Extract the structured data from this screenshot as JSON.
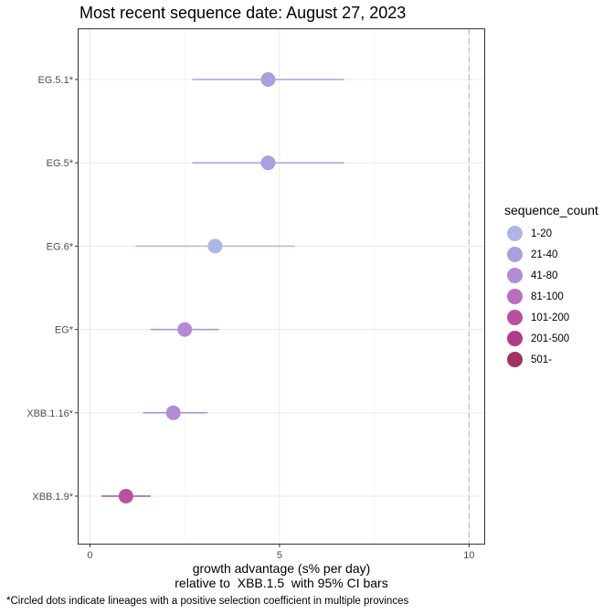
{
  "title": "Most recent sequence date: August 27, 2023",
  "footnote": "*Circled dots indicate lineages with a positive selection coefficient in multiple provinces",
  "chart_data": {
    "type": "scatter",
    "title": "Most recent sequence date: August 27, 2023",
    "xlabel": "growth advantage (s% per day)",
    "xlabel_line2": "relative to  XBB.1.5  with 95% CI bars",
    "ylabel": "",
    "xlim": [
      -0.3,
      10.4
    ],
    "xticks": [
      0,
      5,
      10
    ],
    "reference_line_x": 10,
    "grid": true,
    "categories": [
      "EG.5.1*",
      "EG.5*",
      "EG.6*",
      "EG*",
      "XBB.1.16*",
      "XBB.1.9*"
    ],
    "points": [
      {
        "lineage": "EG.5.1*",
        "x": 4.7,
        "lower": 2.7,
        "upper": 6.7,
        "sequence_count": "21-40"
      },
      {
        "lineage": "EG.5*",
        "x": 4.7,
        "lower": 2.7,
        "upper": 6.7,
        "sequence_count": "21-40"
      },
      {
        "lineage": "EG.6*",
        "x": 3.3,
        "lower": 1.2,
        "upper": 5.4,
        "sequence_count": "1-20"
      },
      {
        "lineage": "EG*",
        "x": 2.5,
        "lower": 1.6,
        "upper": 3.4,
        "sequence_count": "41-80"
      },
      {
        "lineage": "XBB.1.16*",
        "x": 2.2,
        "lower": 1.4,
        "upper": 3.1,
        "sequence_count": "41-80"
      },
      {
        "lineage": "XBB.1.9*",
        "x": 0.95,
        "lower": 0.3,
        "upper": 1.6,
        "sequence_count": "101-200"
      }
    ],
    "legend": {
      "title": "sequence_count",
      "placement": "right",
      "items": [
        {
          "label": "1-20",
          "color": "#aeb6e6"
        },
        {
          "label": "21-40",
          "color": "#ab9fdd"
        },
        {
          "label": "41-80",
          "color": "#b38bd4"
        },
        {
          "label": "81-100",
          "color": "#b96fc0"
        },
        {
          "label": "101-200",
          "color": "#b84fa0"
        },
        {
          "label": "201-500",
          "color": "#b03c86"
        },
        {
          "label": "501-",
          "color": "#a03362"
        }
      ]
    }
  }
}
